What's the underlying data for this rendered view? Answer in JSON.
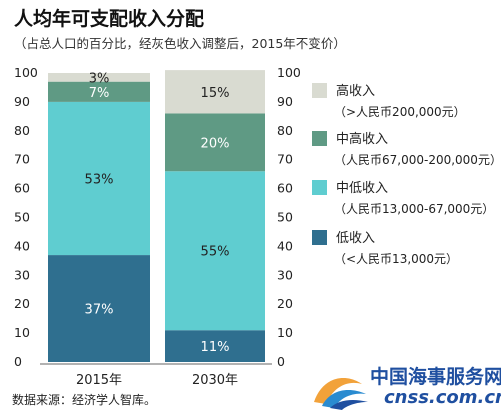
{
  "title": "人均年可支配收入分配",
  "subtitle": "（占总人口的百分比，经灰色收入调整后，2015年不变价）",
  "source": "数据来源：经济学人智库。",
  "watermark": {
    "cn": "中国海事服务网",
    "en": "cnss.com.cn"
  },
  "chart_data": {
    "type": "bar",
    "stacked": true,
    "categories": [
      "2015年",
      "2030年"
    ],
    "ylim": [
      0,
      100
    ],
    "yticks": [
      0,
      10,
      20,
      30,
      40,
      50,
      60,
      70,
      80,
      90,
      100
    ],
    "series": [
      {
        "name": "低收入",
        "range": "（<人民币13,000元）",
        "color": "#2f6f8f",
        "values": [
          37,
          11
        ],
        "labels": [
          "37%",
          "11%"
        ]
      },
      {
        "name": "中低收入",
        "range": "（人民币13,000-67,000元）",
        "color": "#5fcdd0",
        "values": [
          53,
          55
        ],
        "labels": [
          "53%",
          "55%"
        ]
      },
      {
        "name": "中高收入",
        "range": "（人民币67,000-200,000元）",
        "color": "#5f9a84",
        "values": [
          7,
          20
        ],
        "labels": [
          "7%",
          "20%"
        ]
      },
      {
        "name": "高收入",
        "range": "（>人民币200,000元）",
        "color": "#d9dbd1",
        "values": [
          3,
          15
        ],
        "labels": [
          "3%",
          "15%"
        ]
      }
    ]
  }
}
